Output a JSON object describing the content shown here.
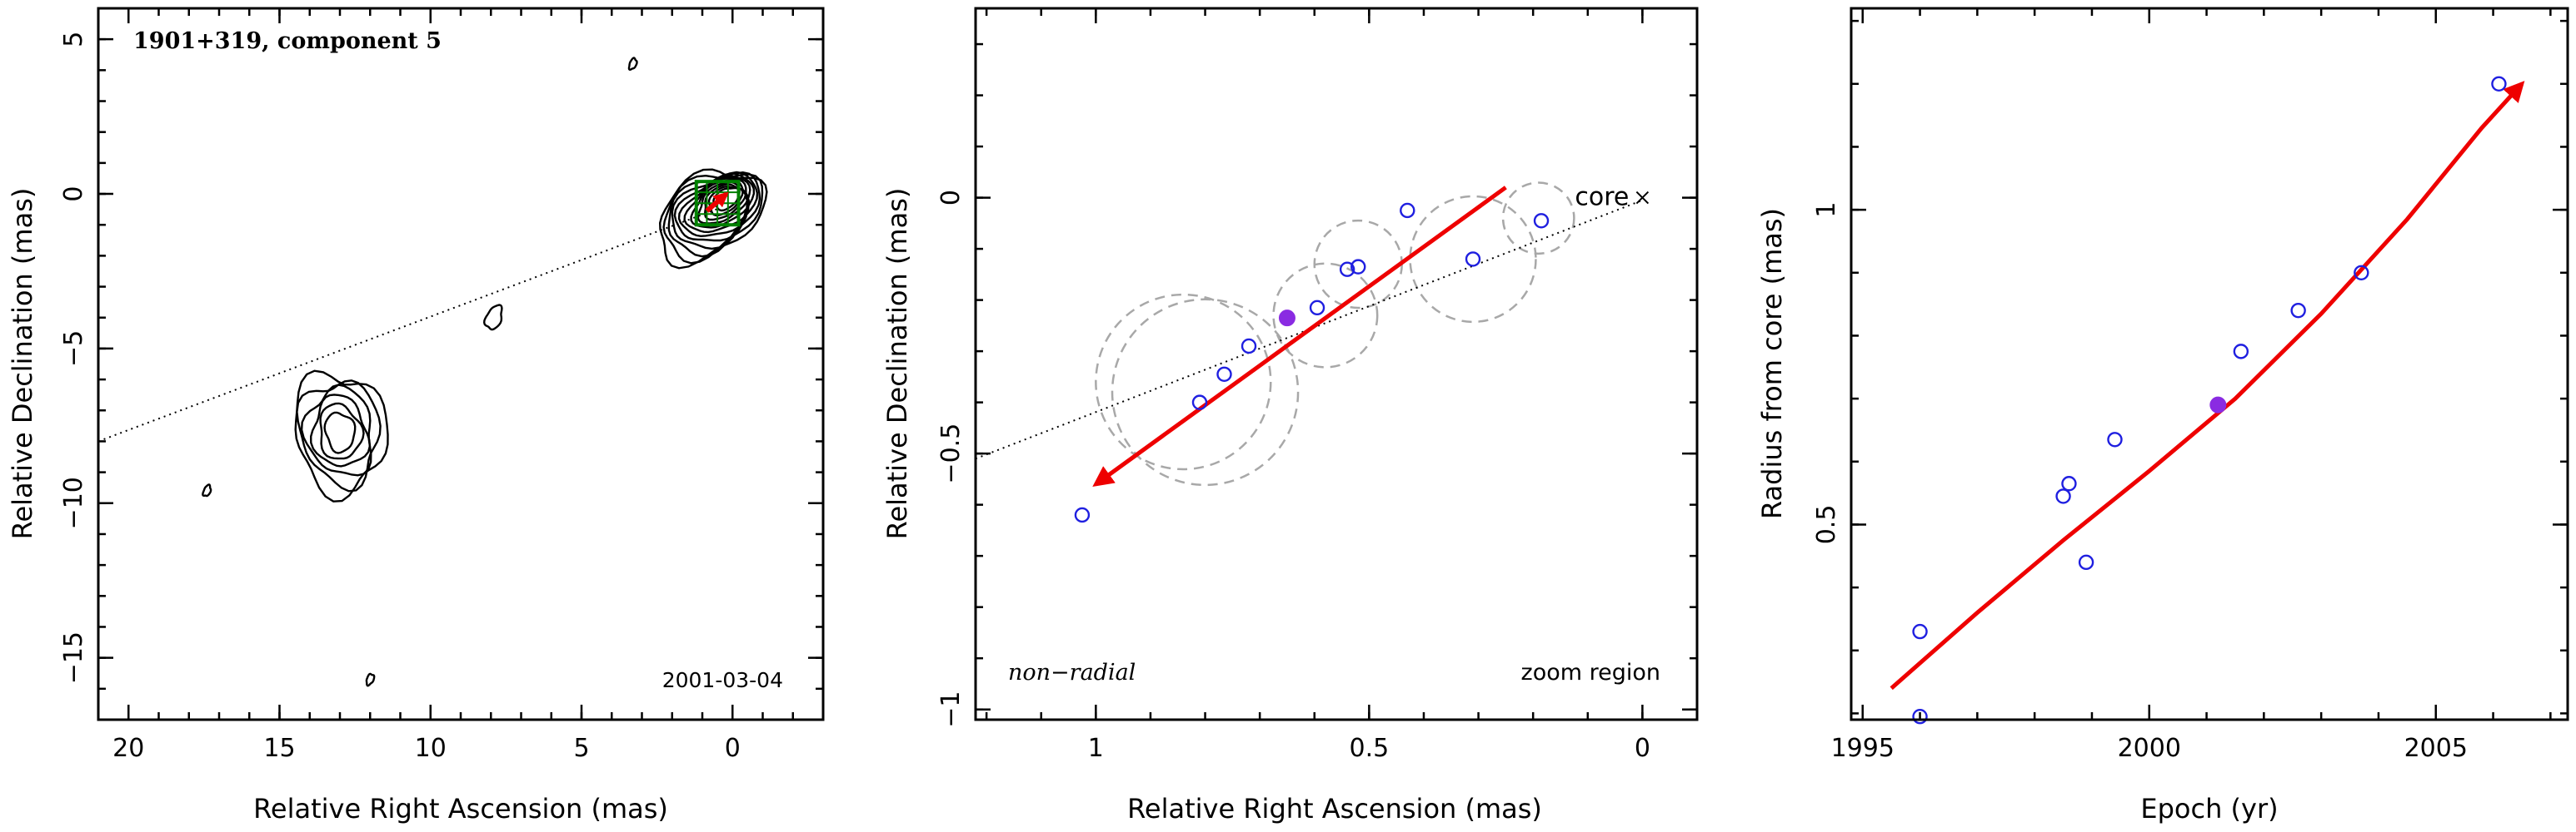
{
  "colors": {
    "arrow": "#ee0000",
    "open_marker": "#1f1fe0",
    "filled_marker": "#8a2be2",
    "error_circle": "#a8a8a8",
    "box": "#008000"
  },
  "chart_data": [
    {
      "type": "contour",
      "title": "1901+319, component 5",
      "date_label": "2001-03-04",
      "xlabel": "Relative Right Ascension (mas)",
      "ylabel": "Relative Declination (mas)",
      "xlim": [
        21,
        -3
      ],
      "ylim": [
        -17,
        6
      ],
      "xticks": [
        20,
        15,
        10,
        5,
        0
      ],
      "yticks": [
        5,
        0,
        -5,
        -10,
        -15
      ],
      "xtick_labels": [
        "20",
        "15",
        "10",
        "5",
        "0"
      ],
      "ytick_labels": [
        "5",
        "0",
        "−5",
        "−10",
        "−15"
      ],
      "core_center": [
        0.15,
        -0.1
      ],
      "lobe_center": [
        13.0,
        -7.7
      ],
      "jet_direction_line": [
        [
          21,
          -8.0
        ],
        [
          0.4,
          -0.45
        ]
      ],
      "arrow": [
        [
          0.85,
          -0.55
        ],
        [
          0.2,
          0.0
        ]
      ],
      "zoom_box": {
        "x": [
          -0.2,
          1.2
        ],
        "y": [
          -1.0,
          0.4
        ]
      },
      "small_features": [
        [
          7.9,
          -4.0
        ],
        [
          17.4,
          -9.6
        ],
        [
          3.3,
          4.2
        ],
        [
          12.0,
          -15.7
        ]
      ]
    },
    {
      "type": "scatter",
      "label_left": "non−radial",
      "label_right": "zoom region",
      "core_label": "core",
      "xlabel": "Relative Right Ascension (mas)",
      "ylabel": "Relative Declination (mas)",
      "xlim": [
        1.22,
        -0.1
      ],
      "ylim": [
        -1.02,
        0.37
      ],
      "xticks": [
        1,
        0.5,
        0
      ],
      "yticks": [
        0,
        -0.5,
        -1
      ],
      "xtick_labels": [
        "1",
        "0.5",
        "0"
      ],
      "ytick_labels": [
        "0",
        "−0.5",
        "−1"
      ],
      "points_open": [
        [
          1.025,
          -0.62
        ],
        [
          0.81,
          -0.4
        ],
        [
          0.765,
          -0.345
        ],
        [
          0.72,
          -0.29
        ],
        [
          0.595,
          -0.215
        ],
        [
          0.54,
          -0.14
        ],
        [
          0.52,
          -0.135
        ],
        [
          0.43,
          -0.025
        ],
        [
          0.31,
          -0.12
        ],
        [
          0.185,
          -0.045
        ]
      ],
      "points_filled": [
        [
          0.65,
          -0.235
        ]
      ],
      "error_circles": [
        {
          "x": 0.8,
          "y": -0.38,
          "r": 0.17
        },
        {
          "x": 0.84,
          "y": -0.36,
          "r": 0.16
        },
        {
          "x": 0.58,
          "y": -0.23,
          "r": 0.095
        },
        {
          "x": 0.52,
          "y": -0.13,
          "r": 0.08
        },
        {
          "x": 0.31,
          "y": -0.12,
          "r": 0.115
        },
        {
          "x": 0.19,
          "y": -0.04,
          "r": 0.065
        }
      ],
      "jet_direction_line": [
        [
          1.22,
          -0.51
        ],
        [
          0.0,
          -0.005
        ]
      ],
      "core_marker": [
        0.0,
        0.0
      ],
      "arrow": [
        [
          0.25,
          0.02
        ],
        [
          1.0,
          -0.56
        ]
      ]
    },
    {
      "type": "scatter",
      "xlabel": "Epoch (yr)",
      "ylabel": "Radius from core (mas)",
      "xlim": [
        1994.8,
        2007.3
      ],
      "ylim": [
        0.19,
        1.32
      ],
      "xticks": [
        1995,
        2000,
        2005
      ],
      "yticks": [
        0.5,
        1
      ],
      "xtick_labels": [
        "1995",
        "2000",
        "2005"
      ],
      "ytick_labels": [
        "0.5",
        "1"
      ],
      "points_open": [
        [
          1996.0,
          0.195
        ],
        [
          1996.0,
          0.33
        ],
        [
          1998.5,
          0.545
        ],
        [
          1998.6,
          0.565
        ],
        [
          1998.9,
          0.44
        ],
        [
          1999.4,
          0.635
        ],
        [
          2001.6,
          0.775
        ],
        [
          2002.6,
          0.84
        ],
        [
          2003.7,
          0.9
        ],
        [
          2006.1,
          1.2
        ]
      ],
      "points_filled": [
        [
          2001.2,
          0.69
        ]
      ],
      "fit_curve": [
        [
          1995.5,
          0.24
        ],
        [
          1997.0,
          0.36
        ],
        [
          1998.5,
          0.475
        ],
        [
          2000.0,
          0.585
        ],
        [
          2001.5,
          0.7
        ],
        [
          2003.0,
          0.835
        ],
        [
          2004.5,
          0.985
        ],
        [
          2005.8,
          1.13
        ],
        [
          2006.5,
          1.2
        ]
      ]
    }
  ]
}
